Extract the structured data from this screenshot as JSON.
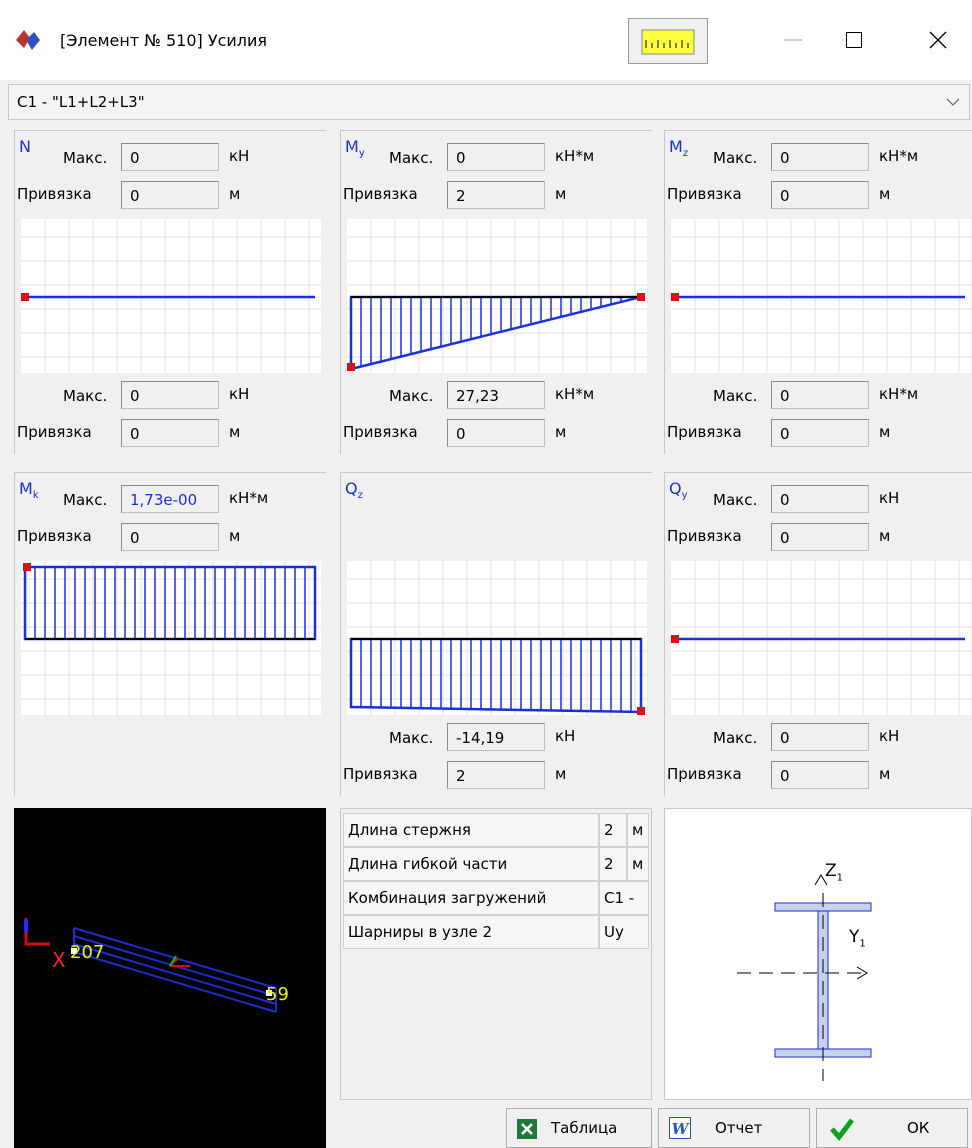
{
  "window": {
    "title": "[Элемент № 510] Усилия"
  },
  "combo": {
    "value": "C1 - \"L1+L2+L3\""
  },
  "panels": [
    {
      "label": "N",
      "top": {
        "max_label": "Макс.",
        "max_value": "0",
        "max_unit": "кН",
        "bind_label": "Привязка",
        "bind_value": "0",
        "bind_unit": "м"
      },
      "bottom": {
        "max_label": "Макс.",
        "max_value": "0",
        "max_unit": "кН",
        "bind_label": "Привязка",
        "bind_value": "0",
        "bind_unit": "м"
      }
    },
    {
      "label": "M",
      "subscript": "y",
      "top": {
        "max_label": "Макс.",
        "max_value": "0",
        "max_unit": "кН*м",
        "bind_label": "Привязка",
        "bind_value": "2",
        "bind_unit": "м"
      },
      "bottom": {
        "max_label": "Макс.",
        "max_value": "27,23",
        "max_unit": "кН*м",
        "bind_label": "Привязка",
        "bind_value": "0",
        "bind_unit": "м"
      }
    },
    {
      "label": "M",
      "subscript": "z",
      "top": {
        "max_label": "Макс.",
        "max_value": "0",
        "max_unit": "кН*м",
        "bind_label": "Привязка",
        "bind_value": "0",
        "bind_unit": "м"
      },
      "bottom": {
        "max_label": "Макс.",
        "max_value": "0",
        "max_unit": "кН*м",
        "bind_label": "Привязка",
        "bind_value": "0",
        "bind_unit": "м"
      }
    },
    {
      "label": "M",
      "subscript": "k",
      "top": {
        "max_label": "Макс.",
        "max_value": "1,73e-00",
        "max_unit": "кН*м",
        "bind_label": "Привязка",
        "bind_value": "0",
        "bind_unit": "м"
      }
    },
    {
      "label": "Q",
      "subscript": "z",
      "bottom": {
        "max_label": "Макс.",
        "max_value": "-14,19",
        "max_unit": "кН",
        "bind_label": "Привязка",
        "bind_value": "2",
        "bind_unit": "м"
      }
    },
    {
      "label": "Q",
      "subscript": "y",
      "top": {
        "max_label": "Макс.",
        "max_value": "0",
        "max_unit": "кН",
        "bind_label": "Привязка",
        "bind_value": "0",
        "bind_unit": "м"
      },
      "bottom": {
        "max_label": "Макс.",
        "max_value": "0",
        "max_unit": "кН",
        "bind_label": "Привязка",
        "bind_value": "0",
        "bind_unit": "м"
      }
    }
  ],
  "view3d": {
    "axis_label": "X",
    "node_start": "207",
    "node_end": "59"
  },
  "info_table": {
    "rows": [
      [
        "Длина стержня",
        "2",
        "м"
      ],
      [
        "Длина гибкой части",
        "2",
        "м"
      ],
      [
        "Комбинация загружений",
        "C1 -"
      ],
      [
        "Шарниры в узле 2",
        "Uy"
      ]
    ]
  },
  "section": {
    "z_label": "Z",
    "z_sub": "1",
    "y_label": "Y",
    "y_sub": "1"
  },
  "buttons": [
    "Таблица",
    "Отчет",
    "ОК"
  ]
}
